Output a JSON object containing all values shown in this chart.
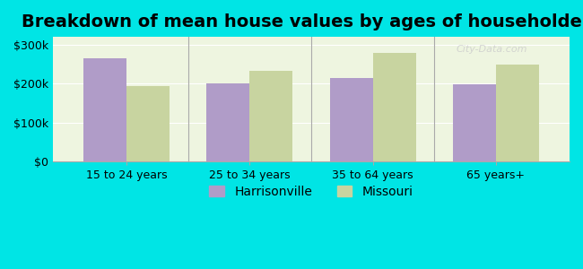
{
  "title": "Breakdown of mean house values by ages of householders",
  "categories": [
    "15 to 24 years",
    "25 to 34 years",
    "35 to 64 years",
    "65 years+"
  ],
  "harrisonville": [
    265000,
    200000,
    215000,
    198000
  ],
  "missouri": [
    193000,
    232000,
    278000,
    250000
  ],
  "harrisonville_color": "#b09cc8",
  "missouri_color": "#c8d4a0",
  "background_color": "#00e5e5",
  "plot_bg_color": "#eef5e0",
  "ylim": [
    0,
    320000
  ],
  "yticks": [
    0,
    100000,
    200000,
    300000
  ],
  "ytick_labels": [
    "$0",
    "$100k",
    "$200k",
    "$300k"
  ],
  "legend_labels": [
    "Harrisonville",
    "Missouri"
  ],
  "bar_width": 0.35,
  "title_fontsize": 14,
  "tick_fontsize": 9,
  "legend_fontsize": 10
}
